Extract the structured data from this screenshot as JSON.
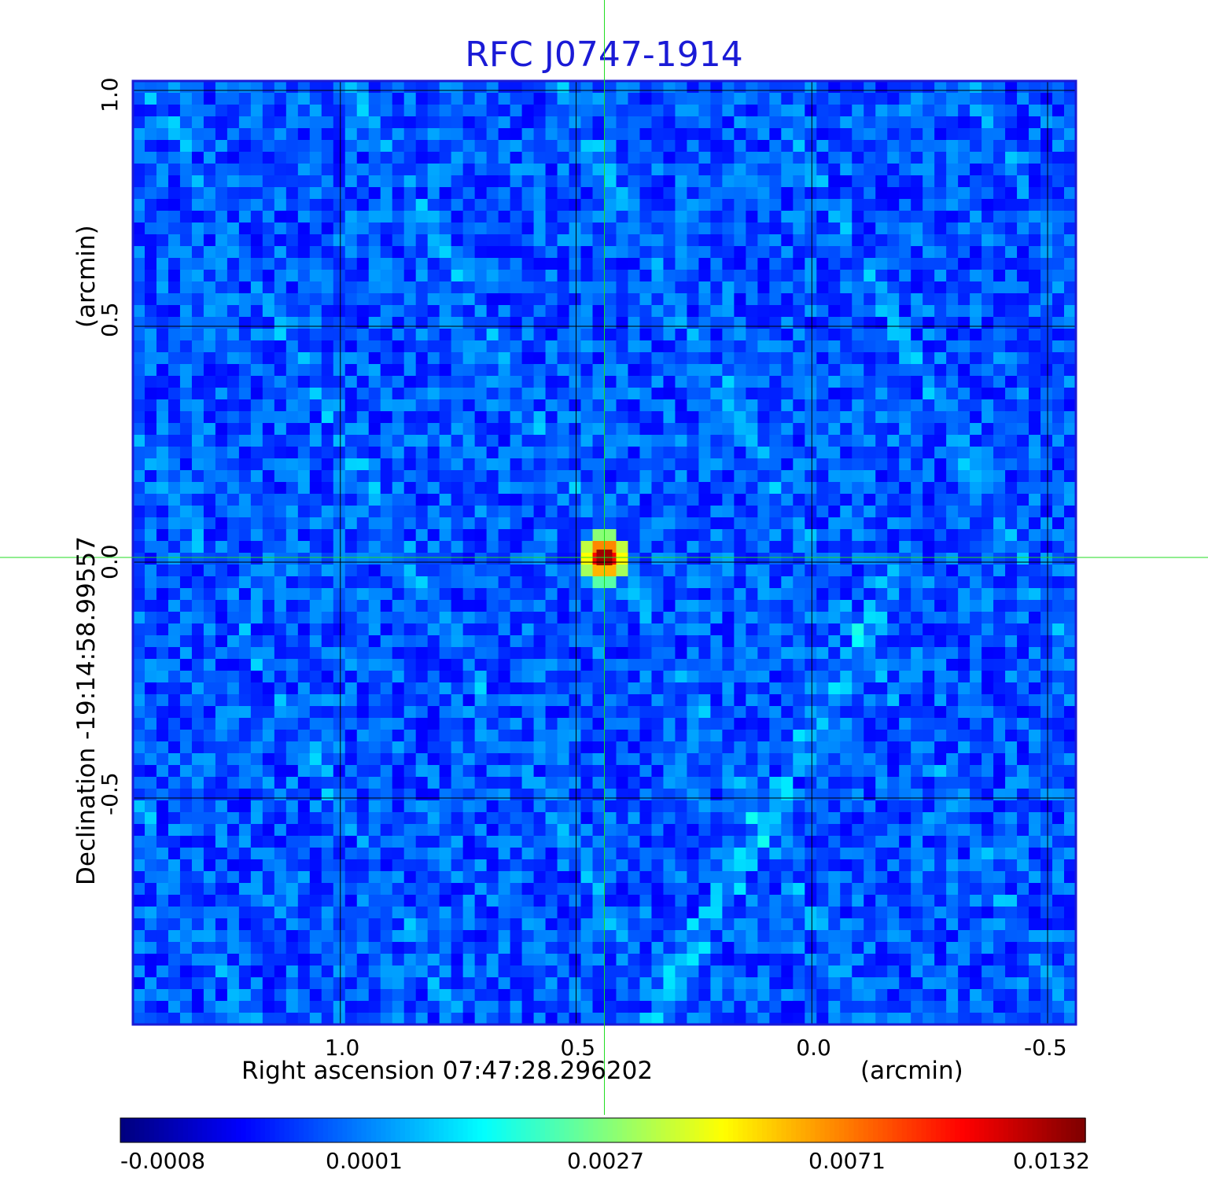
{
  "title": "RFC J0747-1914",
  "chart_data": {
    "type": "heatmap",
    "title": "RFC J0747-1914",
    "xlabel": "Right ascension  07:47:28.296202",
    "xunit": "(arcmin)",
    "ylabel": "Declination  -19:14:58.99557",
    "yunit": "(arcmin)",
    "x_ticks": [
      "1.0",
      "0.5",
      "0.0",
      "-0.5"
    ],
    "y_ticks": [
      "1.0",
      "0.5",
      "0.0",
      "-0.5"
    ],
    "xlim": [
      1.44,
      -0.56
    ],
    "ylim": [
      -0.98,
      1.02
    ],
    "grid": true,
    "crosshair": {
      "ra_offset": 0.44,
      "dec_offset": 0.01
    },
    "source_peak": {
      "ra_offset": 0.44,
      "dec_offset": 0.01,
      "value": 0.0132
    },
    "colorbar": {
      "ticks": [
        "-0.0008",
        "0.0001",
        "0.0027",
        "0.0071",
        "0.0132"
      ],
      "min": -0.0008,
      "max": 0.0132,
      "colormap": "jet"
    },
    "colors": {
      "title": "#1a1ad6",
      "crosshair": "#22dd22",
      "frame": "#1a1ad6"
    }
  }
}
